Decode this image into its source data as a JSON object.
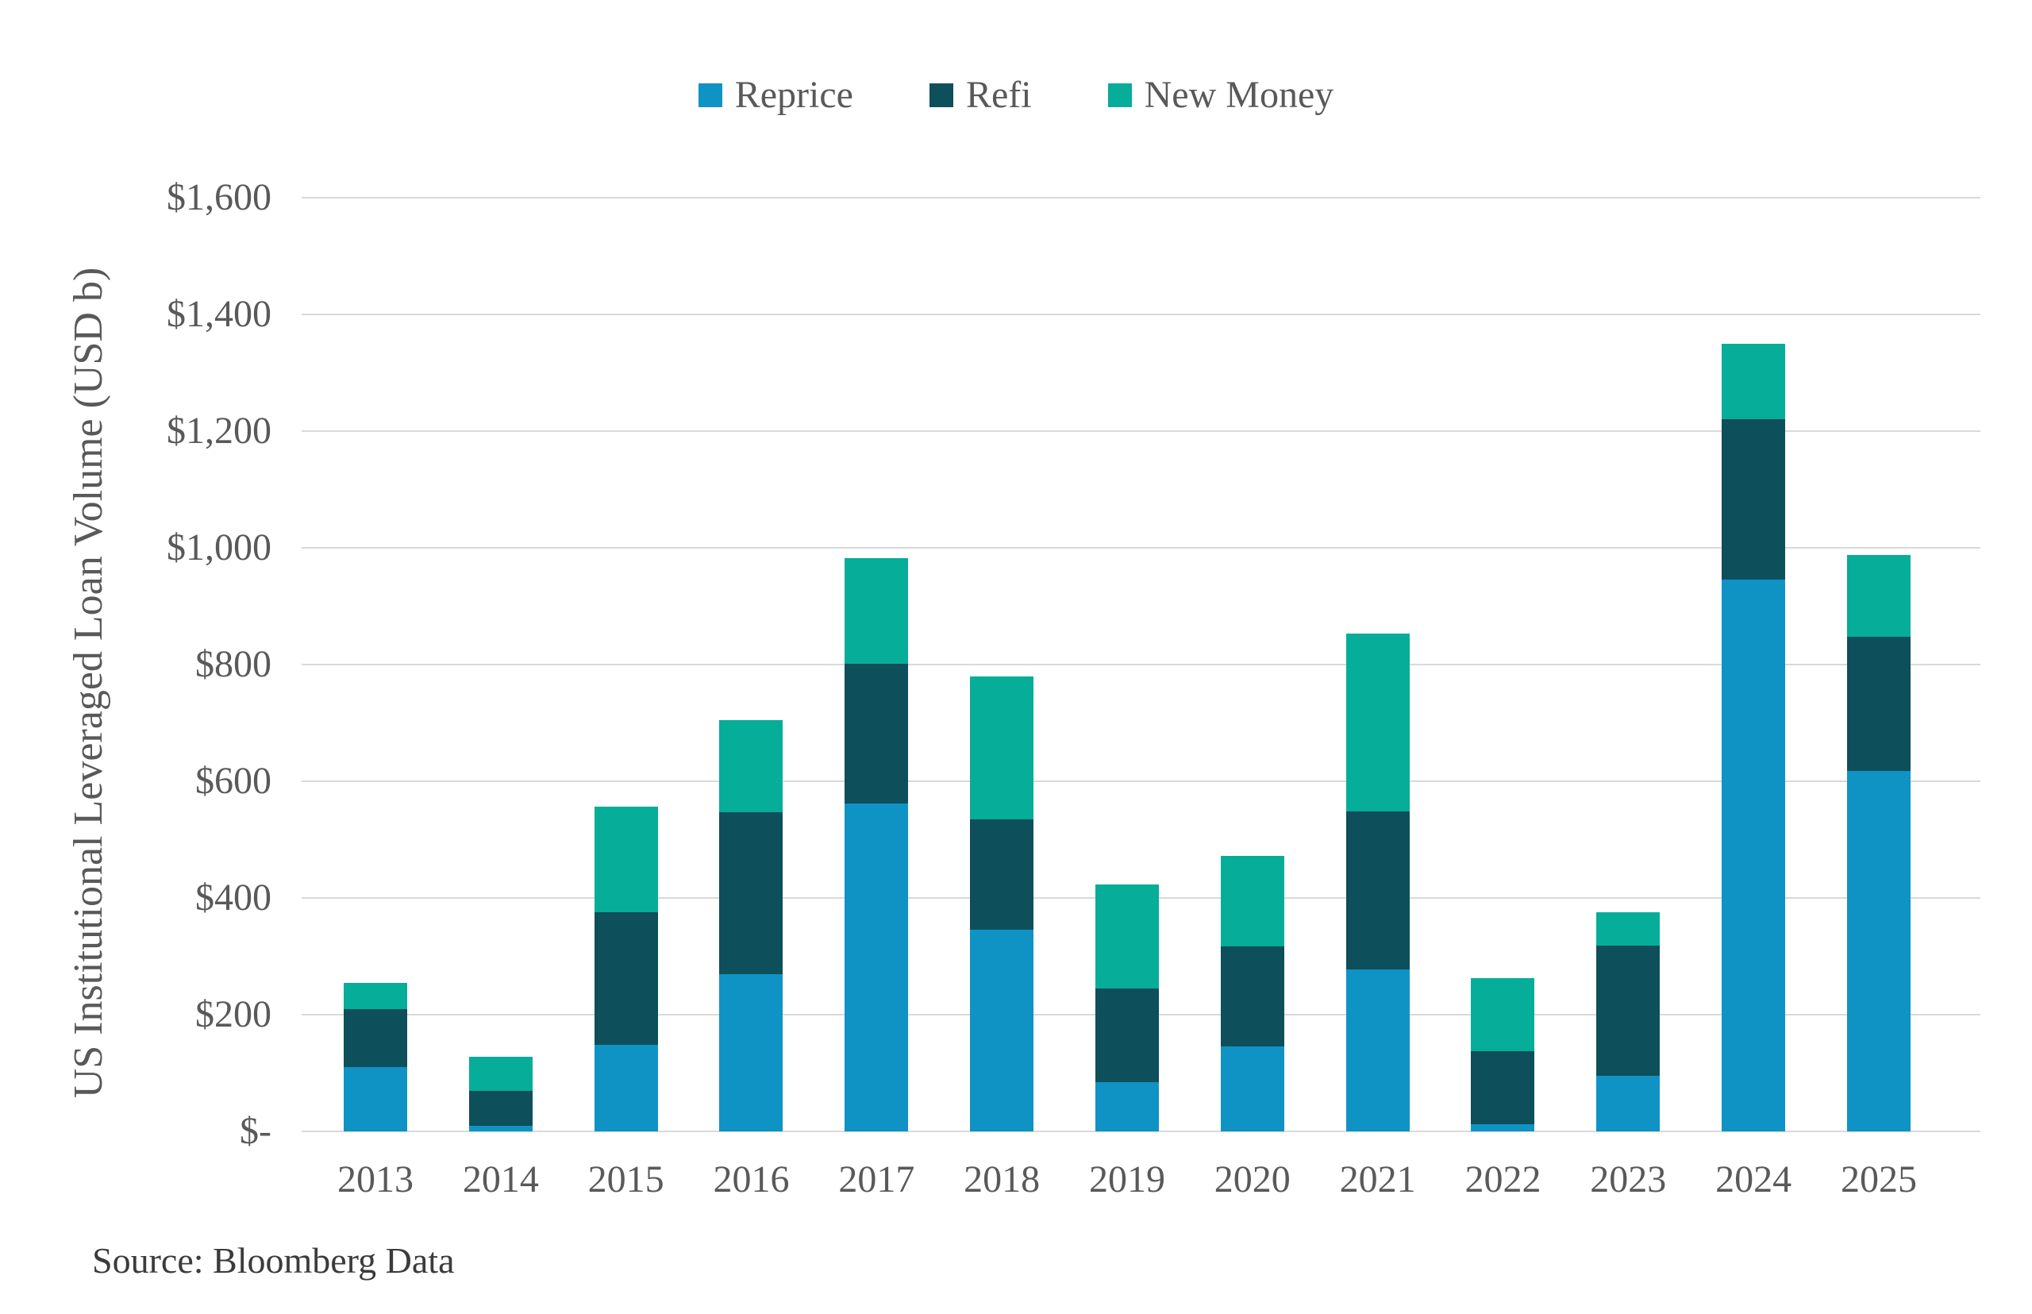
{
  "legend": {
    "items": [
      {
        "label": "Reprice",
        "color": "#0f93c5"
      },
      {
        "label": "Refi",
        "color": "#0d4f5a"
      },
      {
        "label": "New Money",
        "color": "#06ad99"
      }
    ]
  },
  "y_axis": {
    "title": "US Institutional  Leveraged Loan Volume (USD b)",
    "ticks": [
      {
        "value": 1600,
        "label": "$1,600"
      },
      {
        "value": 1400,
        "label": "$1,400"
      },
      {
        "value": 1200,
        "label": "$1,200"
      },
      {
        "value": 1000,
        "label": "$1,000"
      },
      {
        "value": 800,
        "label": "$800"
      },
      {
        "value": 600,
        "label": "$600"
      },
      {
        "value": 400,
        "label": "$400"
      },
      {
        "value": 200,
        "label": "$200"
      },
      {
        "value": 0,
        "label": "$-"
      }
    ]
  },
  "source": "Source: Bloomberg Data",
  "chart_data": {
    "type": "bar",
    "stacked": true,
    "title": "",
    "xlabel": "",
    "ylabel": "US Institutional  Leveraged Loan Volume (USD b)",
    "ylim": [
      0,
      1600
    ],
    "grid": true,
    "legend_position": "top",
    "categories": [
      "2013",
      "2014",
      "2015",
      "2016",
      "2017",
      "2018",
      "2019",
      "2020",
      "2021",
      "2022",
      "2023",
      "2024",
      "2025"
    ],
    "series": [
      {
        "name": "Reprice",
        "color": "#0f93c5",
        "values": [
          110,
          10,
          148,
          270,
          562,
          345,
          85,
          145,
          278,
          12,
          95,
          945,
          618
        ]
      },
      {
        "name": "Refi",
        "color": "#0d4f5a",
        "values": [
          100,
          60,
          228,
          277,
          240,
          190,
          160,
          172,
          270,
          125,
          223,
          275,
          230
        ]
      },
      {
        "name": "New Money",
        "color": "#06ad99",
        "values": [
          45,
          58,
          180,
          158,
          180,
          245,
          178,
          155,
          305,
          125,
          57,
          130,
          140
        ]
      }
    ],
    "totals": [
      255,
      128,
      556,
      705,
      982,
      780,
      423,
      472,
      853,
      262,
      375,
      1350,
      988
    ]
  }
}
